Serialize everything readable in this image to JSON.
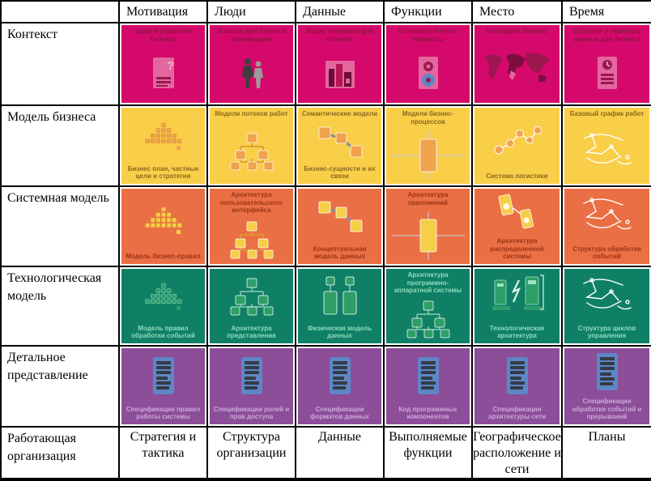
{
  "columns": [
    "Мотивация",
    "Люди",
    "Данные",
    "Функции",
    "Место",
    "Время"
  ],
  "rows": [
    {
      "label": "Контекст",
      "palette": {
        "bg": "#D5096B",
        "text": "#8E1544",
        "icon_main": "#E2679D",
        "icon_dark": "#9C1650"
      },
      "cells": [
        {
          "labels": {
            "top": "Цели и стратегия бизнеса"
          },
          "icon": "document-question-icon"
        },
        {
          "labels": {
            "top": "Важные для бизнеса организации"
          },
          "icon": "people-icon"
        },
        {
          "labels": {
            "top": "Вещи, значимые для бизнеса"
          },
          "icon": "buildings-icon"
        },
        {
          "labels": {
            "top": "Основные бизнес-процессы"
          },
          "icon": "document-gears-icon"
        },
        {
          "labels": {
            "top": "География бизнеса"
          },
          "icon": "world-map-icon"
        },
        {
          "labels": {
            "top": "События и периоды, важные для бизнеса"
          },
          "icon": "document-clock-icon"
        }
      ]
    },
    {
      "label": "Модель бизнеса",
      "palette": {
        "bg": "#F9CE48",
        "text": "#8A691C",
        "icon_main": "#F0A24C",
        "icon_dark": "#D08A30"
      },
      "cells": [
        {
          "labels": {
            "bottom": "Бизнес план, частные цели и стратегии"
          },
          "icon": "pyramid-icon"
        },
        {
          "labels": {
            "top": "Модели потоков работ"
          },
          "icon": "org-chart-icon"
        },
        {
          "labels": {
            "top": "Семантические модели",
            "bottom": "Бизнес-сущности и их связи"
          },
          "icon": "linked-squares-icon"
        },
        {
          "labels": {
            "top": "Модели бизнес-процессов"
          },
          "icon": "process-box-icon"
        },
        {
          "labels": {
            "bottom": "Система логистики"
          },
          "icon": "network-nodes-icon"
        },
        {
          "labels": {
            "top": "Базовый график работ"
          },
          "icon": "sketch-icon"
        }
      ]
    },
    {
      "label": "Системная модель",
      "palette": {
        "bg": "#EB6F45",
        "text": "#9B3415",
        "icon_main": "#F6CE48",
        "icon_dark": "#D9A92E"
      },
      "cells": [
        {
          "labels": {
            "bottom": "Модель бизнес-правил"
          },
          "icon": "pyramid-icon"
        },
        {
          "labels": {
            "top": "Архитектура пользовательского интерфейса"
          },
          "icon": "org-chart-icon"
        },
        {
          "labels": {
            "bottom": "Концептуальная модель данных"
          },
          "icon": "linked-squares-icon"
        },
        {
          "labels": {
            "top": "Архитектура приложений"
          },
          "icon": "process-box-icon"
        },
        {
          "labels": {
            "bottom": "Архитектура распределенной системы"
          },
          "icon": "devices-icon"
        },
        {
          "labels": {
            "bottom": "Структура обработки событий"
          },
          "icon": "sketch-icon"
        }
      ]
    },
    {
      "label": "Технологическая модель",
      "palette": {
        "bg": "#0F8066",
        "text": "#90DBBB",
        "icon_main": "#2E9E68",
        "icon_dark": "#9FE0C4"
      },
      "cells": [
        {
          "labels": {
            "bottom": "Модель правил обработки событий"
          },
          "icon": "pyramid-icon"
        },
        {
          "labels": {
            "bottom": "Архитектура представления"
          },
          "icon": "org-chart-icon"
        },
        {
          "labels": {
            "bottom": "Физическая модель данных"
          },
          "icon": "components-icon"
        },
        {
          "labels": {
            "top": "Архитектура программно-аппаратной системы"
          },
          "icon": "org-chart-icon"
        },
        {
          "labels": {
            "bottom": "Технологическая архитектура"
          },
          "icon": "computers-lightning-icon"
        },
        {
          "labels": {
            "bottom": "Структура циклов управления"
          },
          "icon": "sketch-icon"
        }
      ]
    },
    {
      "label": "Детальное представление",
      "palette": {
        "bg": "#8C4D99",
        "text": "#CBA8DA",
        "icon_main": "#5E86C6",
        "icon_dark": "#343B46"
      },
      "cells": [
        {
          "labels": {
            "bottom": "Спецификации правил работы системы"
          },
          "icon": "spec-document-icon"
        },
        {
          "labels": {
            "bottom": "Спецификации ролей и прав доступа"
          },
          "icon": "spec-document-icon"
        },
        {
          "labels": {
            "bottom": "Спецификации форматов данных"
          },
          "icon": "spec-document-icon"
        },
        {
          "labels": {
            "bottom": "Код программных компонентов"
          },
          "icon": "spec-document-icon"
        },
        {
          "labels": {
            "bottom": "Спецификации архитектуры сети"
          },
          "icon": "spec-document-icon"
        },
        {
          "labels": {
            "bottom": "Спецификации обработки событий и прерываний"
          },
          "icon": "spec-document-icon"
        }
      ]
    }
  ],
  "footer": {
    "label": "Работающая организация",
    "cells": [
      "Стратегия и тактика",
      "Структура организации",
      "Данные",
      "Выполняемые функции",
      "Географическое расположение и сети",
      "Планы"
    ]
  },
  "layout_colors": {
    "border": "#000000",
    "background": "#FFFFFF"
  }
}
